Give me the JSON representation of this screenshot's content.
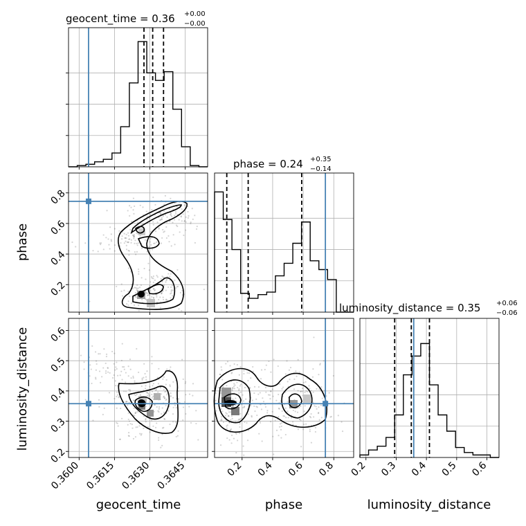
{
  "chart_data": {
    "type": "corner",
    "parameters": [
      "geocent_time",
      "phase",
      "luminosity_distance"
    ],
    "axis_labels": {
      "geocent_time": "geocent_time",
      "phase": "phase",
      "luminosity_distance": "luminosity_distance"
    },
    "titles": {
      "geocent_time": {
        "name": "geocent_time",
        "median": "0.36",
        "plus": "+0.00",
        "minus": "−0.00"
      },
      "phase": {
        "name": "phase",
        "median": "0.24",
        "plus": "+0.35",
        "minus": "−0.14"
      },
      "luminosity_distance": {
        "name": "luminosity_distance",
        "median": "0.35",
        "plus": "+0.06",
        "minus": "−0.06"
      }
    },
    "ranges": {
      "geocent_time": [
        0.35955,
        0.36545
      ],
      "phase": [
        0.02,
        0.93
      ],
      "luminosity_distance": [
        0.18,
        0.64
      ]
    },
    "ticks": {
      "geocent_time": {
        "values": [
          0.36,
          0.3615,
          0.363,
          0.3645
        ],
        "labels": [
          "0.3600",
          "0.3615",
          "0.3630",
          "0.3645"
        ]
      },
      "phase": {
        "values": [
          0.2,
          0.4,
          0.6,
          0.8
        ],
        "labels": [
          "0.2",
          "0.4",
          "0.6",
          "0.8"
        ]
      },
      "luminosity_distance": {
        "values": [
          0.2,
          0.3,
          0.4,
          0.5,
          0.6
        ],
        "labels": [
          "0.2",
          "0.3",
          "0.4",
          "0.5",
          "0.6"
        ]
      }
    },
    "truths": {
      "geocent_time": 0.3604,
      "phase": 0.745,
      "luminosity_distance": 0.358
    },
    "quantiles": {
      "geocent_time": [
        0.36275,
        0.36312,
        0.36358
      ],
      "phase": [
        0.1,
        0.24,
        0.59
      ],
      "luminosity_distance": [
        0.295,
        0.35,
        0.41
      ]
    },
    "histograms": {
      "geocent_time": [
        0,
        0.01,
        0.02,
        0.04,
        0.06,
        0.11,
        0.32,
        0.67,
        1.0,
        0.75,
        0.69,
        0.76,
        0.46,
        0.16,
        0.01,
        0.0
      ],
      "phase": [
        0.96,
        0.74,
        0.5,
        0.15,
        0.11,
        0.14,
        0.16,
        0.29,
        0.39,
        0.55,
        0.72,
        0.41,
        0.34,
        0.26,
        0.0,
        0.0
      ],
      "luminosity_distance": [
        0.02,
        0.06,
        0.09,
        0.16,
        0.34,
        0.66,
        0.81,
        0.91,
        0.58,
        0.34,
        0.21,
        0.08,
        0.04,
        0.02,
        0.02,
        0.0
      ]
    },
    "grid": true,
    "color_truth": "#4682b4",
    "color_main": "#000000"
  }
}
